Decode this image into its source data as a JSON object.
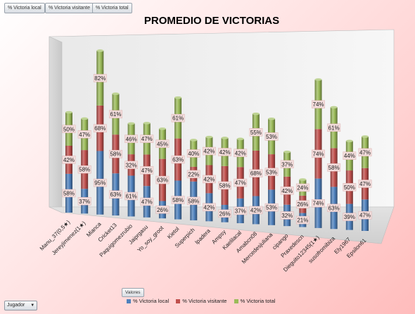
{
  "field_buttons": [
    "% Victoria local",
    "% Victoria visitante",
    "% Victoria total"
  ],
  "values_button": "Valores",
  "row_field": "Jugador",
  "colors": {
    "local": "#4f81bd",
    "visitante": "#c0504d",
    "total": "#9bbb59",
    "label_bg": "#f2dcdb"
  },
  "chart_data": {
    "type": "bar",
    "stacked": true,
    "style": "3d-cylinder",
    "title": "PROMEDIO DE VICTORIAS",
    "xlabel": "",
    "ylabel": "",
    "legend_position": "bottom",
    "categories": [
      "Manu_37(0,5★)",
      "Jereyjimenez(1★)",
      "Mianca",
      "Cricket13",
      "Paquigomezrubio",
      "Jaiprgasu",
      "Yo_soy_groot",
      "Kietol",
      "Superpich",
      "lpadera",
      "Ampsy",
      "Kaelilacal",
      "Amabcn08",
      "Mercedesjuliana",
      "cipango",
      "Praxedescn",
      "Dieguito12345(1★)",
      "susofromibiza",
      "Ely1967",
      "Epsilon61"
    ],
    "series": [
      {
        "name": "% Victoria local",
        "values": [
          58,
          37,
          95,
          63,
          61,
          47,
          26,
          58,
          58,
          42,
          26,
          37,
          42,
          53,
          32,
          21,
          74,
          63,
          39,
          47
        ]
      },
      {
        "name": "% Victoria visitante",
        "values": [
          42,
          58,
          68,
          58,
          32,
          47,
          63,
          63,
          22,
          42,
          58,
          47,
          68,
          53,
          42,
          26,
          74,
          58,
          50,
          47
        ]
      },
      {
        "name": "% Victoria total",
        "values": [
          50,
          47,
          82,
          61,
          46,
          47,
          45,
          61,
          40,
          42,
          42,
          42,
          55,
          53,
          37,
          24,
          74,
          61,
          44,
          47
        ]
      }
    ],
    "value_suffix": "%"
  }
}
